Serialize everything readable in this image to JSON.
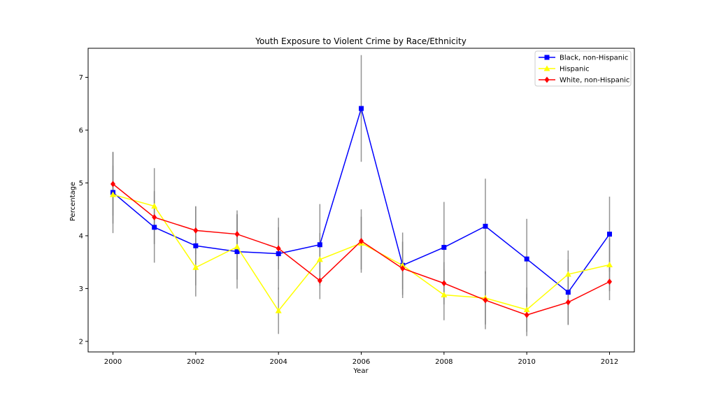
{
  "chart_data": {
    "type": "line",
    "title": "Youth Exposure to Violent Crime by Race/Ethnicity",
    "xlabel": "Year",
    "ylabel": "Percentage",
    "xlim": [
      1999.4,
      2012.6
    ],
    "ylim": [
      1.8,
      7.55
    ],
    "xticks": [
      2000,
      2002,
      2004,
      2006,
      2008,
      2010,
      2012
    ],
    "yticks": [
      2,
      3,
      4,
      5,
      6,
      7
    ],
    "legend_position": "top-right",
    "grid": false,
    "error_bar_color": "#808080",
    "x": [
      2000,
      2001,
      2002,
      2003,
      2004,
      2005,
      2006,
      2007,
      2008,
      2009,
      2010,
      2011,
      2012
    ],
    "series": [
      {
        "name": "Black, non-Hispanic",
        "color": "#0000ff",
        "marker": "square",
        "values": [
          4.82,
          4.16,
          3.81,
          3.7,
          3.66,
          3.83,
          6.41,
          3.44,
          3.78,
          4.18,
          3.56,
          2.93,
          4.03
        ],
        "err": [
          0.77,
          0.67,
          0.75,
          0.7,
          0.68,
          0.77,
          1.01,
          0.62,
          0.86,
          0.9,
          0.76,
          0.62,
          0.71
        ]
      },
      {
        "name": "Hispanic",
        "color": "#ffff00",
        "marker": "triangle",
        "values": [
          4.78,
          4.56,
          3.4,
          3.79,
          2.58,
          3.55,
          3.86,
          3.44,
          2.88,
          2.82,
          2.6,
          3.27,
          3.45
        ],
        "err": [
          0.55,
          0.72,
          0.55,
          0.62,
          0.44,
          0.5,
          0.5,
          0.45,
          0.48,
          0.5,
          0.42,
          0.45,
          0.5
        ]
      },
      {
        "name": "White, non-Hispanic",
        "color": "#ff0000",
        "marker": "diamond",
        "values": [
          4.98,
          4.35,
          4.1,
          4.03,
          3.76,
          3.15,
          3.9,
          3.38,
          3.1,
          2.78,
          2.5,
          2.74,
          3.13
        ],
        "err": [
          0.6,
          0.5,
          0.45,
          0.45,
          0.4,
          0.35,
          0.6,
          0.5,
          0.4,
          0.55,
          0.4,
          0.42,
          0.35
        ]
      }
    ]
  }
}
